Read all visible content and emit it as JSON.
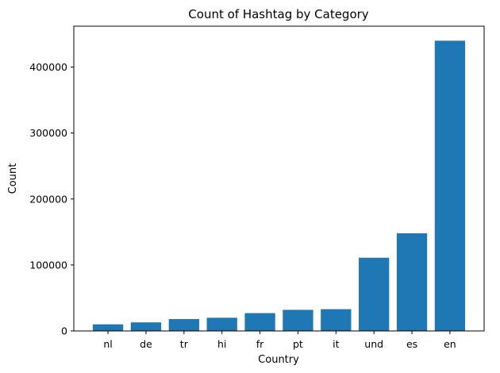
{
  "chart_data": {
    "type": "bar",
    "title": "Count of Hashtag by Category",
    "xlabel": "Country",
    "ylabel": "Count",
    "categories": [
      "nl",
      "de",
      "tr",
      "hi",
      "fr",
      "pt",
      "it",
      "und",
      "es",
      "en"
    ],
    "values": [
      10000,
      13000,
      18000,
      20000,
      27000,
      32000,
      33000,
      111000,
      148000,
      440000
    ],
    "ylim": [
      0,
      462000
    ],
    "yticks": [
      0,
      100000,
      200000,
      300000,
      400000
    ],
    "ytick_labels": [
      "0",
      "100000",
      "200000",
      "300000",
      "400000"
    ],
    "grid": false,
    "bar_color": "#1f77b4"
  }
}
